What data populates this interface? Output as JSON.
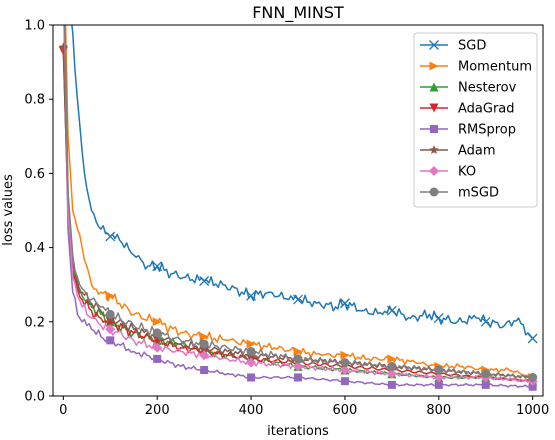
{
  "chart_data": {
    "type": "line",
    "title": "FNN_MINST",
    "xlabel": "iterations",
    "ylabel": "loss values",
    "xlim": [
      -22,
      1022
    ],
    "ylim": [
      0,
      1.0
    ],
    "xticks": [
      0,
      200,
      400,
      600,
      800,
      1000
    ],
    "yticks": [
      0.0,
      0.2,
      0.4,
      0.6,
      0.8,
      1.0
    ],
    "xtick_labels": [
      "0",
      "200",
      "400",
      "600",
      "800",
      "1000"
    ],
    "ytick_labels": [
      "0.0",
      "0.2",
      "0.4",
      "0.6",
      "0.8",
      "1.0"
    ],
    "grid": false,
    "legend_position": "top-right",
    "series": [
      {
        "name": "SGD",
        "color": "#1f77b4",
        "marker": "x",
        "x": [
          0,
          10,
          20,
          30,
          40,
          50,
          60,
          70,
          80,
          100,
          120,
          150,
          180,
          200,
          230,
          260,
          300,
          340,
          380,
          400,
          440,
          480,
          500,
          540,
          580,
          600,
          640,
          680,
          700,
          740,
          780,
          800,
          840,
          880,
          900,
          940,
          970,
          990,
          1000
        ],
        "y": [
          1.25,
          1.1,
          0.98,
          0.8,
          0.66,
          0.56,
          0.5,
          0.47,
          0.45,
          0.43,
          0.42,
          0.38,
          0.35,
          0.35,
          0.33,
          0.32,
          0.31,
          0.3,
          0.28,
          0.27,
          0.28,
          0.26,
          0.26,
          0.25,
          0.24,
          0.25,
          0.23,
          0.22,
          0.23,
          0.21,
          0.22,
          0.21,
          0.2,
          0.21,
          0.2,
          0.19,
          0.21,
          0.17,
          0.155
        ]
      },
      {
        "name": "Momentum",
        "color": "#ff7f0e",
        "marker": "triangle-right",
        "x": [
          0,
          10,
          20,
          30,
          40,
          50,
          60,
          80,
          100,
          120,
          150,
          200,
          250,
          300,
          350,
          400,
          450,
          500,
          550,
          600,
          650,
          700,
          750,
          800,
          850,
          900,
          950,
          1000
        ],
        "y": [
          1.25,
          0.7,
          0.5,
          0.45,
          0.4,
          0.35,
          0.3,
          0.28,
          0.27,
          0.25,
          0.22,
          0.2,
          0.17,
          0.16,
          0.15,
          0.14,
          0.13,
          0.12,
          0.11,
          0.11,
          0.1,
          0.1,
          0.09,
          0.08,
          0.08,
          0.07,
          0.07,
          0.05
        ]
      },
      {
        "name": "Nesterov",
        "color": "#2ca02c",
        "marker": "triangle-up",
        "x": [
          0,
          10,
          20,
          30,
          40,
          60,
          80,
          100,
          150,
          200,
          250,
          300,
          350,
          400,
          500,
          600,
          700,
          800,
          900,
          1000
        ],
        "y": [
          1.2,
          0.55,
          0.34,
          0.3,
          0.27,
          0.24,
          0.22,
          0.2,
          0.17,
          0.15,
          0.14,
          0.12,
          0.11,
          0.1,
          0.08,
          0.07,
          0.06,
          0.05,
          0.05,
          0.04
        ]
      },
      {
        "name": "AdaGrad",
        "color": "#d62728",
        "marker": "triangle-down",
        "x": [
          0,
          10,
          20,
          30,
          40,
          60,
          80,
          100,
          150,
          200,
          250,
          300,
          350,
          400,
          500,
          600,
          700,
          800,
          900,
          1000
        ],
        "y": [
          0.93,
          0.5,
          0.33,
          0.29,
          0.26,
          0.23,
          0.21,
          0.2,
          0.17,
          0.15,
          0.13,
          0.12,
          0.11,
          0.1,
          0.09,
          0.08,
          0.07,
          0.06,
          0.05,
          0.04
        ]
      },
      {
        "name": "RMSprop",
        "color": "#9467bd",
        "marker": "square",
        "x": [
          0,
          10,
          20,
          30,
          40,
          60,
          80,
          100,
          150,
          200,
          250,
          300,
          350,
          400,
          500,
          600,
          700,
          800,
          900,
          1000
        ],
        "y": [
          1.1,
          0.45,
          0.28,
          0.22,
          0.2,
          0.18,
          0.16,
          0.15,
          0.12,
          0.1,
          0.08,
          0.07,
          0.06,
          0.05,
          0.05,
          0.04,
          0.03,
          0.03,
          0.03,
          0.025
        ]
      },
      {
        "name": "Adam",
        "color": "#8c564b",
        "marker": "star",
        "x": [
          0,
          10,
          20,
          30,
          40,
          60,
          80,
          100,
          150,
          200,
          250,
          300,
          350,
          400,
          500,
          600,
          700,
          800,
          900,
          1000
        ],
        "y": [
          0.94,
          0.52,
          0.36,
          0.31,
          0.28,
          0.25,
          0.23,
          0.21,
          0.18,
          0.16,
          0.14,
          0.13,
          0.12,
          0.11,
          0.1,
          0.09,
          0.08,
          0.07,
          0.06,
          0.05
        ]
      },
      {
        "name": "KO",
        "color": "#e377c2",
        "marker": "diamond",
        "x": [
          0,
          10,
          20,
          30,
          40,
          60,
          80,
          100,
          150,
          200,
          250,
          300,
          350,
          400,
          500,
          600,
          700,
          800,
          900,
          1000
        ],
        "y": [
          1.15,
          0.5,
          0.32,
          0.27,
          0.24,
          0.21,
          0.19,
          0.18,
          0.15,
          0.13,
          0.12,
          0.11,
          0.1,
          0.09,
          0.08,
          0.07,
          0.06,
          0.05,
          0.05,
          0.04
        ]
      },
      {
        "name": "mSGD",
        "color": "#7f7f7f",
        "marker": "circle",
        "x": [
          0,
          10,
          20,
          30,
          40,
          60,
          80,
          100,
          150,
          200,
          250,
          300,
          350,
          400,
          500,
          600,
          700,
          800,
          900,
          1000
        ],
        "y": [
          1.2,
          0.55,
          0.38,
          0.32,
          0.29,
          0.26,
          0.24,
          0.22,
          0.19,
          0.17,
          0.15,
          0.14,
          0.13,
          0.12,
          0.1,
          0.09,
          0.08,
          0.07,
          0.06,
          0.05
        ]
      }
    ]
  }
}
